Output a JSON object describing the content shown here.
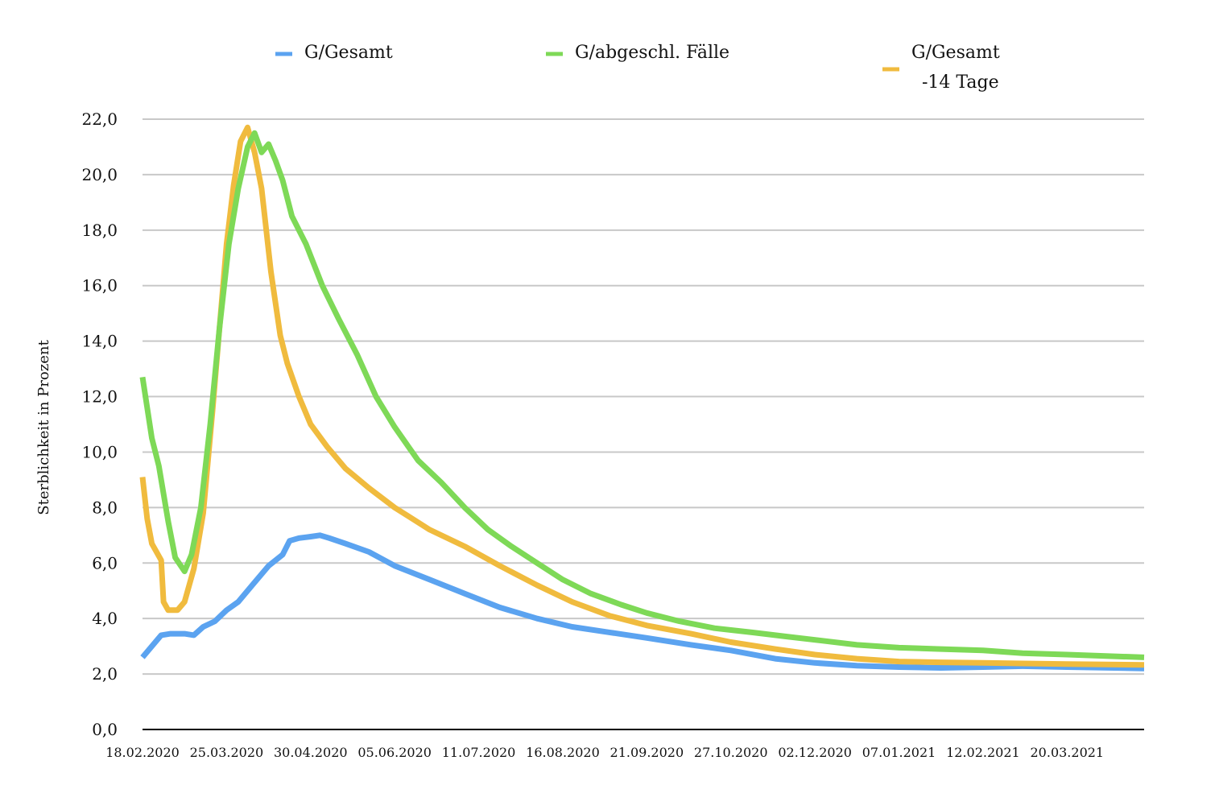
{
  "chart_data": {
    "type": "line",
    "ylabel": "Sterblichkeit in Prozent",
    "ylim": [
      0,
      22
    ],
    "yticks": [
      "0,0",
      "2,0",
      "4,0",
      "6,0",
      "8,0",
      "10,0",
      "12,0",
      "14,0",
      "16,0",
      "18,0",
      "20,0",
      "22,0"
    ],
    "xticks": [
      "18.02.2020",
      "25.03.2020",
      "30.04.2020",
      "05.06.2020",
      "11.07.2020",
      "16.08.2020",
      "21.09.2020",
      "27.10.2020",
      "02.12.2020",
      "07.01.2021",
      "12.02.2021",
      "20.03.2021"
    ],
    "grid": true,
    "legend_position": "top",
    "x_start": "18.02.2020",
    "x_end": "22.04.2021",
    "series": [
      {
        "name": "G/Gesamt",
        "color": "#5ba3f0",
        "points": [
          [
            "18.02.2020",
            2.6
          ],
          [
            "22.02.2020",
            3.0
          ],
          [
            "26.02.2020",
            3.4
          ],
          [
            "01.03.2020",
            3.45
          ],
          [
            "07.03.2020",
            3.45
          ],
          [
            "11.03.2020",
            3.4
          ],
          [
            "15.03.2020",
            3.7
          ],
          [
            "20.03.2020",
            3.9
          ],
          [
            "25.03.2020",
            4.3
          ],
          [
            "30.03.2020",
            4.6
          ],
          [
            "05.04.2020",
            5.2
          ],
          [
            "12.04.2020",
            5.9
          ],
          [
            "18.04.2020",
            6.3
          ],
          [
            "21.04.2020",
            6.8
          ],
          [
            "25.04.2020",
            6.9
          ],
          [
            "30.04.2020",
            6.95
          ],
          [
            "04.05.2020",
            7.0
          ],
          [
            "08.05.2020",
            6.9
          ],
          [
            "15.05.2020",
            6.7
          ],
          [
            "25.05.2020",
            6.4
          ],
          [
            "05.06.2020",
            5.9
          ],
          [
            "20.06.2020",
            5.4
          ],
          [
            "05.07.2020",
            4.9
          ],
          [
            "20.07.2020",
            4.4
          ],
          [
            "05.08.2020",
            4.0
          ],
          [
            "20.08.2020",
            3.7
          ],
          [
            "05.09.2020",
            3.5
          ],
          [
            "21.09.2020",
            3.3
          ],
          [
            "10.10.2020",
            3.05
          ],
          [
            "27.10.2020",
            2.85
          ],
          [
            "15.11.2020",
            2.55
          ],
          [
            "02.12.2020",
            2.4
          ],
          [
            "20.12.2020",
            2.3
          ],
          [
            "07.01.2021",
            2.25
          ],
          [
            "25.01.2021",
            2.22
          ],
          [
            "12.02.2021",
            2.25
          ],
          [
            "01.03.2021",
            2.28
          ],
          [
            "20.03.2021",
            2.25
          ],
          [
            "22.04.2021",
            2.2
          ]
        ]
      },
      {
        "name": "G/abgeschl. Fälle",
        "color": "#7ed957",
        "points": [
          [
            "18.02.2020",
            12.7
          ],
          [
            "22.02.2020",
            10.5
          ],
          [
            "25.02.2020",
            9.5
          ],
          [
            "29.02.2020",
            7.5
          ],
          [
            "03.03.2020",
            6.2
          ],
          [
            "07.03.2020",
            5.7
          ],
          [
            "10.03.2020",
            6.3
          ],
          [
            "14.03.2020",
            8.0
          ],
          [
            "18.03.2020",
            11.0
          ],
          [
            "22.03.2020",
            14.5
          ],
          [
            "26.03.2020",
            17.5
          ],
          [
            "30.03.2020",
            19.5
          ],
          [
            "03.04.2020",
            21.0
          ],
          [
            "06.04.2020",
            21.5
          ],
          [
            "09.04.2020",
            20.8
          ],
          [
            "12.04.2020",
            21.1
          ],
          [
            "15.04.2020",
            20.5
          ],
          [
            "18.04.2020",
            19.8
          ],
          [
            "22.04.2020",
            18.5
          ],
          [
            "28.04.2020",
            17.5
          ],
          [
            "05.05.2020",
            16.0
          ],
          [
            "12.05.2020",
            14.8
          ],
          [
            "20.05.2020",
            13.5
          ],
          [
            "28.05.2020",
            12.0
          ],
          [
            "05.06.2020",
            10.9
          ],
          [
            "15.06.2020",
            9.7
          ],
          [
            "25.06.2020",
            8.9
          ],
          [
            "05.07.2020",
            8.0
          ],
          [
            "15.07.2020",
            7.2
          ],
          [
            "25.07.2020",
            6.6
          ],
          [
            "05.08.2020",
            6.0
          ],
          [
            "16.08.2020",
            5.4
          ],
          [
            "28.08.2020",
            4.9
          ],
          [
            "10.09.2020",
            4.5
          ],
          [
            "21.09.2020",
            4.2
          ],
          [
            "05.10.2020",
            3.9
          ],
          [
            "20.10.2020",
            3.65
          ],
          [
            "05.11.2020",
            3.5
          ],
          [
            "20.11.2020",
            3.35
          ],
          [
            "05.12.2020",
            3.2
          ],
          [
            "20.12.2020",
            3.05
          ],
          [
            "07.01.2021",
            2.95
          ],
          [
            "25.01.2021",
            2.9
          ],
          [
            "12.02.2021",
            2.85
          ],
          [
            "01.03.2021",
            2.75
          ],
          [
            "20.03.2021",
            2.7
          ],
          [
            "22.04.2021",
            2.6
          ]
        ]
      },
      {
        "name": "G/Gesamt -14 Tage",
        "color": "#f0bb3e",
        "points": [
          [
            "18.02.2020",
            9.1
          ],
          [
            "20.02.2020",
            7.6
          ],
          [
            "22.02.2020",
            6.7
          ],
          [
            "26.02.2020",
            6.1
          ],
          [
            "27.02.2020",
            4.6
          ],
          [
            "29.02.2020",
            4.3
          ],
          [
            "04.03.2020",
            4.3
          ],
          [
            "07.03.2020",
            4.6
          ],
          [
            "11.03.2020",
            5.8
          ],
          [
            "15.03.2020",
            7.8
          ],
          [
            "19.03.2020",
            11.5
          ],
          [
            "22.03.2020",
            14.5
          ],
          [
            "25.03.2020",
            17.5
          ],
          [
            "28.03.2020",
            19.6
          ],
          [
            "31.03.2020",
            21.2
          ],
          [
            "03.04.2020",
            21.7
          ],
          [
            "06.04.2020",
            20.8
          ],
          [
            "09.04.2020",
            19.5
          ],
          [
            "13.04.2020",
            16.5
          ],
          [
            "17.04.2020",
            14.2
          ],
          [
            "20.04.2020",
            13.2
          ],
          [
            "25.04.2020",
            12.0
          ],
          [
            "30.04.2020",
            11.0
          ],
          [
            "07.05.2020",
            10.2
          ],
          [
            "15.05.2020",
            9.4
          ],
          [
            "25.05.2020",
            8.7
          ],
          [
            "05.06.2020",
            8.0
          ],
          [
            "20.06.2020",
            7.2
          ],
          [
            "05.07.2020",
            6.6
          ],
          [
            "20.07.2020",
            5.9
          ],
          [
            "05.08.2020",
            5.2
          ],
          [
            "20.08.2020",
            4.6
          ],
          [
            "05.09.2020",
            4.1
          ],
          [
            "21.09.2020",
            3.75
          ],
          [
            "10.10.2020",
            3.45
          ],
          [
            "27.10.2020",
            3.15
          ],
          [
            "15.11.2020",
            2.9
          ],
          [
            "02.12.2020",
            2.7
          ],
          [
            "20.12.2020",
            2.55
          ],
          [
            "07.01.2021",
            2.45
          ],
          [
            "25.01.2021",
            2.42
          ],
          [
            "12.02.2021",
            2.4
          ],
          [
            "01.03.2021",
            2.38
          ],
          [
            "20.03.2021",
            2.36
          ],
          [
            "22.04.2021",
            2.33
          ]
        ]
      }
    ]
  },
  "legend": [
    {
      "label": "G/Gesamt",
      "color": "#5ba3f0"
    },
    {
      "label": "G/abgeschl. Fälle",
      "color": "#7ed957"
    },
    {
      "label_line1": "G/Gesamt",
      "label_line2": "-14 Tage",
      "color": "#f0bb3e"
    }
  ]
}
